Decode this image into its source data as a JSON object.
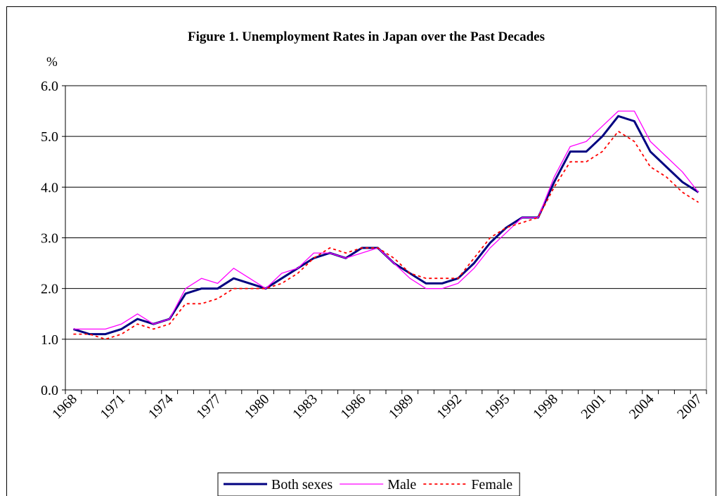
{
  "chart_data": {
    "type": "line",
    "title": "Figure 1.   Unemployment Rates in Japan over the Past Decades",
    "y_label": "%",
    "categories": [
      "1968",
      null,
      null,
      "1971",
      null,
      null,
      "1974",
      null,
      null,
      "1977",
      null,
      null,
      "1980",
      null,
      null,
      "1983",
      null,
      null,
      "1986",
      null,
      null,
      "1989",
      null,
      null,
      "1992",
      null,
      null,
      "1995",
      null,
      null,
      "1998",
      null,
      null,
      "2001",
      null,
      null,
      "2004",
      null,
      null,
      "2007"
    ],
    "series": [
      {
        "name": "Both sexes",
        "color": "#000080",
        "style": "solid",
        "width": 3,
        "values": [
          1.2,
          1.1,
          1.1,
          1.2,
          1.4,
          1.3,
          1.4,
          1.9,
          2.0,
          2.0,
          2.2,
          2.1,
          2.0,
          2.2,
          2.4,
          2.6,
          2.7,
          2.6,
          2.8,
          2.8,
          2.5,
          2.3,
          2.1,
          2.1,
          2.2,
          2.5,
          2.9,
          3.2,
          3.4,
          3.4,
          4.1,
          4.7,
          4.7,
          5.0,
          5.4,
          5.3,
          4.7,
          4.4,
          4.1,
          3.9
        ]
      },
      {
        "name": "Male",
        "color": "#ff00ff",
        "style": "solid",
        "width": 1.3,
        "values": [
          1.2,
          1.2,
          1.2,
          1.3,
          1.5,
          1.3,
          1.4,
          2.0,
          2.2,
          2.1,
          2.4,
          2.2,
          2.0,
          2.3,
          2.4,
          2.7,
          2.7,
          2.6,
          2.7,
          2.8,
          2.5,
          2.2,
          2.0,
          2.0,
          2.1,
          2.4,
          2.8,
          3.1,
          3.4,
          3.4,
          4.2,
          4.8,
          4.9,
          5.2,
          5.5,
          5.5,
          4.9,
          4.6,
          4.3,
          3.9
        ]
      },
      {
        "name": "Female",
        "color": "#ff0000",
        "style": "dotted",
        "width": 1.8,
        "values": [
          1.1,
          1.1,
          1.0,
          1.1,
          1.3,
          1.2,
          1.3,
          1.7,
          1.7,
          1.8,
          2.0,
          2.0,
          2.0,
          2.1,
          2.3,
          2.6,
          2.8,
          2.7,
          2.8,
          2.8,
          2.6,
          2.3,
          2.2,
          2.2,
          2.2,
          2.6,
          3.0,
          3.2,
          3.3,
          3.4,
          4.0,
          4.5,
          4.5,
          4.7,
          5.1,
          4.9,
          4.4,
          4.2,
          3.9,
          3.7
        ]
      }
    ],
    "ylim": [
      0,
      6
    ],
    "yticks": [
      {
        "value": 0,
        "label": "0.0"
      },
      {
        "value": 1,
        "label": "1.0"
      },
      {
        "value": 2,
        "label": "2.0"
      },
      {
        "value": 3,
        "label": "3.0"
      },
      {
        "value": 4,
        "label": "4.0"
      },
      {
        "value": 5,
        "label": "5.0"
      },
      {
        "value": 6,
        "label": "6.0"
      }
    ],
    "grid": true,
    "legend": "bottom"
  }
}
